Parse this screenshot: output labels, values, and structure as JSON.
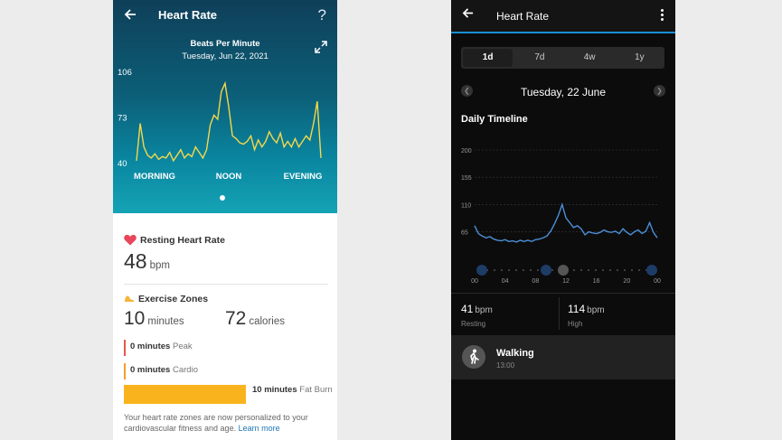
{
  "left": {
    "title": "Heart Rate",
    "help_glyph": "?",
    "chart_title": "Beats Per Minute",
    "chart_date": "Tuesday, Jun 22, 2021",
    "resting_label": "Resting Heart Rate",
    "resting_value": "48",
    "resting_unit": "bpm",
    "exercise_label": "Exercise Zones",
    "ez_minutes": "10",
    "ez_minutes_unit": "minutes",
    "ez_calories": "72",
    "ez_calories_unit": "calories",
    "zones": [
      {
        "value": "0 minutes",
        "name": "Peak",
        "color": "#e8574a"
      },
      {
        "value": "0 minutes",
        "name": "Cardio",
        "color": "#f59e2b"
      }
    ],
    "fat_burn_value": "10 minutes",
    "fat_burn_name": "Fat Burn",
    "fat_burn_color": "#f9b41d",
    "note_text": "Your heart rate zones are now personalized to your cardiovascular fitness and age.",
    "note_link": "Learn more"
  },
  "right": {
    "title": "Heart Rate",
    "tabs": [
      {
        "label": "1d",
        "active": true
      },
      {
        "label": "7d",
        "active": false
      },
      {
        "label": "4w",
        "active": false
      },
      {
        "label": "1y",
        "active": false
      }
    ],
    "date": "Tuesday, 22 June",
    "section_title": "Daily Timeline",
    "resting_value": "41",
    "resting_unit": "bpm",
    "resting_label": "Resting",
    "high_value": "114",
    "high_unit": "bpm",
    "high_label": "High",
    "activity_name": "Walking",
    "activity_time": "13:00",
    "accent": "#1a8fd4"
  },
  "chart_data": [
    {
      "type": "line",
      "title": "Beats Per Minute",
      "subtitle": "Tuesday, Jun 22, 2021",
      "xlabel": "",
      "ylabel": "",
      "x_tick_labels": [
        "MORNING",
        "NOON",
        "EVENING"
      ],
      "y_ticks": [
        40,
        73,
        106
      ],
      "ylim": [
        40,
        106
      ],
      "x": [
        0,
        2,
        4,
        6,
        8,
        10,
        12,
        14,
        16,
        18,
        20,
        22,
        24,
        26,
        28,
        30,
        32,
        34,
        36,
        38,
        40,
        42,
        44,
        46,
        48,
        50,
        52,
        54,
        56,
        58,
        60,
        62,
        64,
        66,
        68,
        70,
        72,
        74,
        76,
        78,
        80,
        82,
        84,
        86,
        88,
        90,
        92,
        94,
        96,
        98,
        100
      ],
      "series": [
        {
          "values": [
            42,
            69,
            52,
            46,
            44,
            47,
            43,
            45,
            44,
            48,
            42,
            46,
            50,
            44,
            47,
            45,
            52,
            48,
            44,
            50,
            68,
            75,
            72,
            92,
            98,
            81,
            60,
            58,
            55,
            54,
            56,
            60,
            50,
            57,
            52,
            56,
            63,
            58,
            55,
            62,
            52,
            56,
            52,
            58,
            52,
            56,
            60,
            57,
            69,
            85,
            44
          ],
          "color": "#f4d84a"
        }
      ]
    },
    {
      "type": "line",
      "title": "Daily Timeline",
      "xlabel": "",
      "ylabel": "",
      "x_tick_labels": [
        "00",
        "04",
        "08",
        "12",
        "16",
        "20",
        "00"
      ],
      "y_ticks": [
        65,
        110,
        155,
        200
      ],
      "ylim": [
        30,
        200
      ],
      "x": [
        0,
        0.5,
        1,
        1.5,
        2,
        2.5,
        3,
        3.5,
        4,
        4.5,
        5,
        5.5,
        6,
        6.5,
        7,
        7.5,
        8,
        8.5,
        9,
        9.5,
        10,
        10.5,
        11,
        11.5,
        12,
        12.5,
        13,
        13.5,
        14,
        14.5,
        15,
        15.5,
        16,
        16.5,
        17,
        17.5,
        18,
        18.5,
        19,
        19.5,
        20,
        20.5,
        21,
        21.5,
        22,
        22.5,
        23,
        23.5,
        24
      ],
      "series": [
        {
          "values": [
            75,
            62,
            58,
            55,
            57,
            53,
            51,
            50,
            52,
            49,
            50,
            48,
            51,
            49,
            51,
            49,
            52,
            53,
            55,
            58,
            66,
            78,
            92,
            110,
            88,
            80,
            72,
            75,
            70,
            60,
            65,
            63,
            62,
            64,
            68,
            65,
            64,
            66,
            62,
            70,
            64,
            60,
            65,
            68,
            62,
            66,
            80,
            64,
            55
          ],
          "color": "#4b8fd8"
        }
      ]
    }
  ]
}
